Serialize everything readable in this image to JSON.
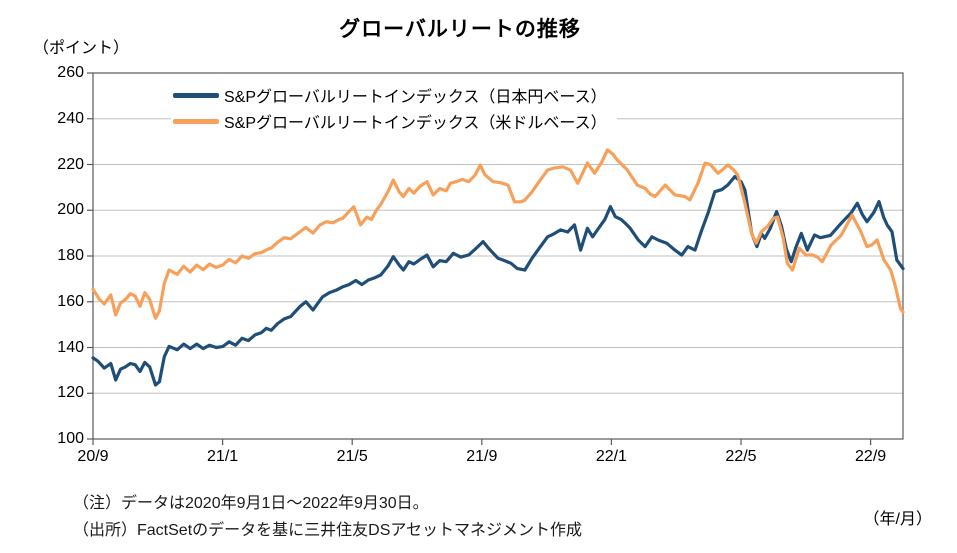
{
  "notes": [
    "（注）データは2020年9月1日～2022年9月30日。",
    "（出所）FactSetのデータを基に三井住友DSアセットマネジメント作成"
  ],
  "colors": {
    "series_jpy": "#1F4E79",
    "series_usd": "#F6A05A",
    "gridline": "#C0C0C0",
    "axis_border": "#595959",
    "text": "#000000"
  },
  "chart_data": {
    "type": "line",
    "title": "グローバルリートの推移",
    "y_unit": "（ポイント）",
    "x_unit": "（年/月）",
    "ylim": [
      100,
      260
    ],
    "y_ticks": [
      100,
      120,
      140,
      160,
      180,
      200,
      220,
      240,
      260
    ],
    "x_encoding": "x = months elapsed since 2020/9 (0 = 2020/9/1, 25 = 2022/9/30)",
    "x_domain": [
      0,
      25
    ],
    "x_ticks": [
      {
        "label": "20/9",
        "m": 0
      },
      {
        "label": "21/1",
        "m": 4
      },
      {
        "label": "21/5",
        "m": 8
      },
      {
        "label": "21/9",
        "m": 12
      },
      {
        "label": "22/1",
        "m": 16
      },
      {
        "label": "22/5",
        "m": 20
      },
      {
        "label": "22/9",
        "m": 24
      }
    ],
    "grid": "horizontal",
    "legend_position": "top-inside",
    "series": [
      {
        "name": "S&Pグローバルリートインデックス（日本円ベース）",
        "color": "#1F4E79",
        "points": [
          [
            0,
            135.5
          ],
          [
            0.15,
            134
          ],
          [
            0.35,
            131
          ],
          [
            0.55,
            133
          ],
          [
            0.7,
            125.8
          ],
          [
            0.85,
            130.5
          ],
          [
            1.0,
            131.5
          ],
          [
            1.15,
            133
          ],
          [
            1.3,
            132.5
          ],
          [
            1.45,
            129.5
          ],
          [
            1.6,
            133.5
          ],
          [
            1.75,
            131.5
          ],
          [
            1.93,
            123.6
          ],
          [
            2.05,
            125
          ],
          [
            2.2,
            136
          ],
          [
            2.35,
            140.5
          ],
          [
            2.6,
            139
          ],
          [
            2.8,
            141.5
          ],
          [
            3.0,
            139.5
          ],
          [
            3.2,
            141.5
          ],
          [
            3.4,
            139.5
          ],
          [
            3.6,
            141
          ],
          [
            3.8,
            140
          ],
          [
            4.0,
            140.4
          ],
          [
            4.2,
            142.5
          ],
          [
            4.4,
            141
          ],
          [
            4.6,
            144
          ],
          [
            4.8,
            143
          ],
          [
            5.0,
            145.5
          ],
          [
            5.2,
            146.5
          ],
          [
            5.35,
            148.4
          ],
          [
            5.5,
            147.5
          ],
          [
            5.7,
            150.5
          ],
          [
            5.9,
            152.5
          ],
          [
            6.1,
            153.5
          ],
          [
            6.38,
            157.8
          ],
          [
            6.57,
            160
          ],
          [
            6.79,
            156.4
          ],
          [
            7.0,
            160.5
          ],
          [
            7.09,
            162.2
          ],
          [
            7.3,
            164
          ],
          [
            7.5,
            165
          ],
          [
            7.7,
            166.5
          ],
          [
            7.9,
            167.5
          ],
          [
            8.11,
            169.3
          ],
          [
            8.3,
            167.5
          ],
          [
            8.5,
            169.5
          ],
          [
            8.7,
            170.5
          ],
          [
            8.88,
            171.7
          ],
          [
            9.1,
            175.5
          ],
          [
            9.27,
            179.7
          ],
          [
            9.45,
            176
          ],
          [
            9.58,
            173.9
          ],
          [
            9.75,
            177.5
          ],
          [
            9.9,
            176.5
          ],
          [
            10.1,
            178.5
          ],
          [
            10.31,
            180.4
          ],
          [
            10.5,
            175.3
          ],
          [
            10.7,
            178
          ],
          [
            10.9,
            177.5
          ],
          [
            11.12,
            181.2
          ],
          [
            11.35,
            179.5
          ],
          [
            11.6,
            180.5
          ],
          [
            11.8,
            183
          ],
          [
            12.04,
            186.3
          ],
          [
            12.2,
            183.5
          ],
          [
            12.5,
            179
          ],
          [
            12.7,
            178
          ],
          [
            12.9,
            176.8
          ],
          [
            13.1,
            174.5
          ],
          [
            13.33,
            173.9
          ],
          [
            13.55,
            179
          ],
          [
            13.73,
            182.6
          ],
          [
            14.03,
            188.4
          ],
          [
            14.2,
            189.5
          ],
          [
            14.43,
            191.4
          ],
          [
            14.65,
            190.5
          ],
          [
            14.86,
            193.6
          ],
          [
            15.05,
            182.6
          ],
          [
            15.26,
            192.1
          ],
          [
            15.42,
            188.4
          ],
          [
            15.6,
            192
          ],
          [
            15.8,
            196
          ],
          [
            15.97,
            201.6
          ],
          [
            16.12,
            197.2
          ],
          [
            16.3,
            196
          ],
          [
            16.43,
            194.3
          ],
          [
            16.58,
            192.1
          ],
          [
            16.83,
            187
          ],
          [
            17.04,
            184.1
          ],
          [
            17.25,
            188.4
          ],
          [
            17.44,
            187
          ],
          [
            17.71,
            185.6
          ],
          [
            17.96,
            182.6
          ],
          [
            18.17,
            180.4
          ],
          [
            18.36,
            184.1
          ],
          [
            18.58,
            182.6
          ],
          [
            18.79,
            191.4
          ],
          [
            18.98,
            198.7
          ],
          [
            19.19,
            208.1
          ],
          [
            19.4,
            209
          ],
          [
            19.59,
            211
          ],
          [
            19.81,
            214.7
          ],
          [
            20.0,
            212.5
          ],
          [
            20.12,
            208.9
          ],
          [
            20.33,
            189.9
          ],
          [
            20.49,
            184.1
          ],
          [
            20.63,
            189.9
          ],
          [
            20.73,
            187.7
          ],
          [
            20.9,
            192
          ],
          [
            21.1,
            199.4
          ],
          [
            21.25,
            193
          ],
          [
            21.4,
            183
          ],
          [
            21.55,
            177.5
          ],
          [
            21.7,
            184
          ],
          [
            21.86,
            189.9
          ],
          [
            22.05,
            182.6
          ],
          [
            22.27,
            189.2
          ],
          [
            22.45,
            188
          ],
          [
            22.6,
            188.5
          ],
          [
            22.76,
            189
          ],
          [
            23.09,
            194.3
          ],
          [
            23.39,
            198.7
          ],
          [
            23.59,
            203.1
          ],
          [
            23.75,
            198
          ],
          [
            23.89,
            195
          ],
          [
            24.1,
            199
          ],
          [
            24.26,
            203.8
          ],
          [
            24.4,
            197
          ],
          [
            24.51,
            193.6
          ],
          [
            24.66,
            190.6
          ],
          [
            24.81,
            178.3
          ],
          [
            25.0,
            174.5
          ]
        ]
      },
      {
        "name": "S&Pグローバルリートインデックス（米ドルベース）",
        "color": "#F6A05A",
        "points": [
          [
            0,
            165.5
          ],
          [
            0.2,
            161
          ],
          [
            0.35,
            159
          ],
          [
            0.55,
            163
          ],
          [
            0.7,
            154.2
          ],
          [
            0.85,
            159.5
          ],
          [
            1.0,
            161
          ],
          [
            1.15,
            163.5
          ],
          [
            1.3,
            162.5
          ],
          [
            1.45,
            158
          ],
          [
            1.6,
            164
          ],
          [
            1.75,
            161
          ],
          [
            1.93,
            152.8
          ],
          [
            2.05,
            156
          ],
          [
            2.2,
            168
          ],
          [
            2.35,
            173.9
          ],
          [
            2.6,
            172
          ],
          [
            2.8,
            175.5
          ],
          [
            3.0,
            173
          ],
          [
            3.2,
            176
          ],
          [
            3.4,
            174
          ],
          [
            3.6,
            176.5
          ],
          [
            3.8,
            175
          ],
          [
            4.0,
            176
          ],
          [
            4.2,
            178.5
          ],
          [
            4.4,
            177
          ],
          [
            4.6,
            180
          ],
          [
            4.8,
            179
          ],
          [
            5.0,
            181
          ],
          [
            5.2,
            181.5
          ],
          [
            5.34,
            182.6
          ],
          [
            5.5,
            183.5
          ],
          [
            5.7,
            186
          ],
          [
            5.9,
            188
          ],
          [
            6.1,
            187.5
          ],
          [
            6.38,
            190.5
          ],
          [
            6.57,
            192.5
          ],
          [
            6.79,
            190
          ],
          [
            7.0,
            193.5
          ],
          [
            7.2,
            195
          ],
          [
            7.4,
            194.5
          ],
          [
            7.6,
            196
          ],
          [
            7.71,
            196.5
          ],
          [
            7.9,
            199.5
          ],
          [
            8.05,
            201.5
          ],
          [
            8.26,
            193.6
          ],
          [
            8.45,
            197
          ],
          [
            8.6,
            196
          ],
          [
            8.72,
            199.4
          ],
          [
            8.9,
            203
          ],
          [
            9.1,
            208
          ],
          [
            9.27,
            213.2
          ],
          [
            9.45,
            208
          ],
          [
            9.58,
            206
          ],
          [
            9.75,
            209.5
          ],
          [
            9.9,
            207.5
          ],
          [
            10.1,
            210.5
          ],
          [
            10.31,
            212.5
          ],
          [
            10.5,
            206.7
          ],
          [
            10.7,
            209.5
          ],
          [
            10.9,
            208.5
          ],
          [
            11.03,
            211.8
          ],
          [
            11.2,
            212.5
          ],
          [
            11.4,
            213.5
          ],
          [
            11.6,
            212.5
          ],
          [
            11.8,
            215.5
          ],
          [
            11.95,
            219.8
          ],
          [
            12.1,
            215.5
          ],
          [
            12.35,
            212.5
          ],
          [
            12.6,
            212
          ],
          [
            12.81,
            211
          ],
          [
            13.01,
            203.7
          ],
          [
            13.21,
            203.7
          ],
          [
            13.33,
            204.5
          ],
          [
            13.55,
            208
          ],
          [
            13.73,
            211.8
          ],
          [
            14.03,
            217.6
          ],
          [
            14.25,
            218.5
          ],
          [
            14.5,
            219
          ],
          [
            14.74,
            217.5
          ],
          [
            14.96,
            211.8
          ],
          [
            15.26,
            220.6
          ],
          [
            15.48,
            216.2
          ],
          [
            15.7,
            221
          ],
          [
            15.88,
            226.4
          ],
          [
            16.05,
            224.5
          ],
          [
            16.18,
            222
          ],
          [
            16.49,
            217.6
          ],
          [
            16.8,
            211
          ],
          [
            17.04,
            209.6
          ],
          [
            17.2,
            207
          ],
          [
            17.35,
            206
          ],
          [
            17.66,
            211
          ],
          [
            17.96,
            206.7
          ],
          [
            18.27,
            206
          ],
          [
            18.42,
            204.5
          ],
          [
            18.67,
            211.8
          ],
          [
            18.89,
            220.6
          ],
          [
            19.05,
            220
          ],
          [
            19.29,
            216.2
          ],
          [
            19.45,
            218
          ],
          [
            19.59,
            219.8
          ],
          [
            19.75,
            218
          ],
          [
            19.9,
            215.4
          ],
          [
            20.12,
            203.1
          ],
          [
            20.33,
            189.9
          ],
          [
            20.47,
            185.6
          ],
          [
            20.63,
            190.6
          ],
          [
            20.82,
            193
          ],
          [
            21.0,
            196.5
          ],
          [
            21.13,
            197
          ],
          [
            21.3,
            188
          ],
          [
            21.43,
            176.8
          ],
          [
            21.59,
            173.9
          ],
          [
            21.8,
            183.4
          ],
          [
            22.01,
            180.4
          ],
          [
            22.2,
            180.5
          ],
          [
            22.36,
            179.5
          ],
          [
            22.51,
            177.5
          ],
          [
            22.78,
            184.8
          ],
          [
            23.09,
            189
          ],
          [
            23.43,
            197.9
          ],
          [
            23.7,
            190.6
          ],
          [
            23.89,
            184.1
          ],
          [
            24.05,
            185
          ],
          [
            24.2,
            187
          ],
          [
            24.41,
            178.3
          ],
          [
            24.62,
            173.9
          ],
          [
            24.77,
            166.6
          ],
          [
            24.92,
            157.1
          ],
          [
            25.0,
            155.5
          ]
        ]
      }
    ]
  }
}
